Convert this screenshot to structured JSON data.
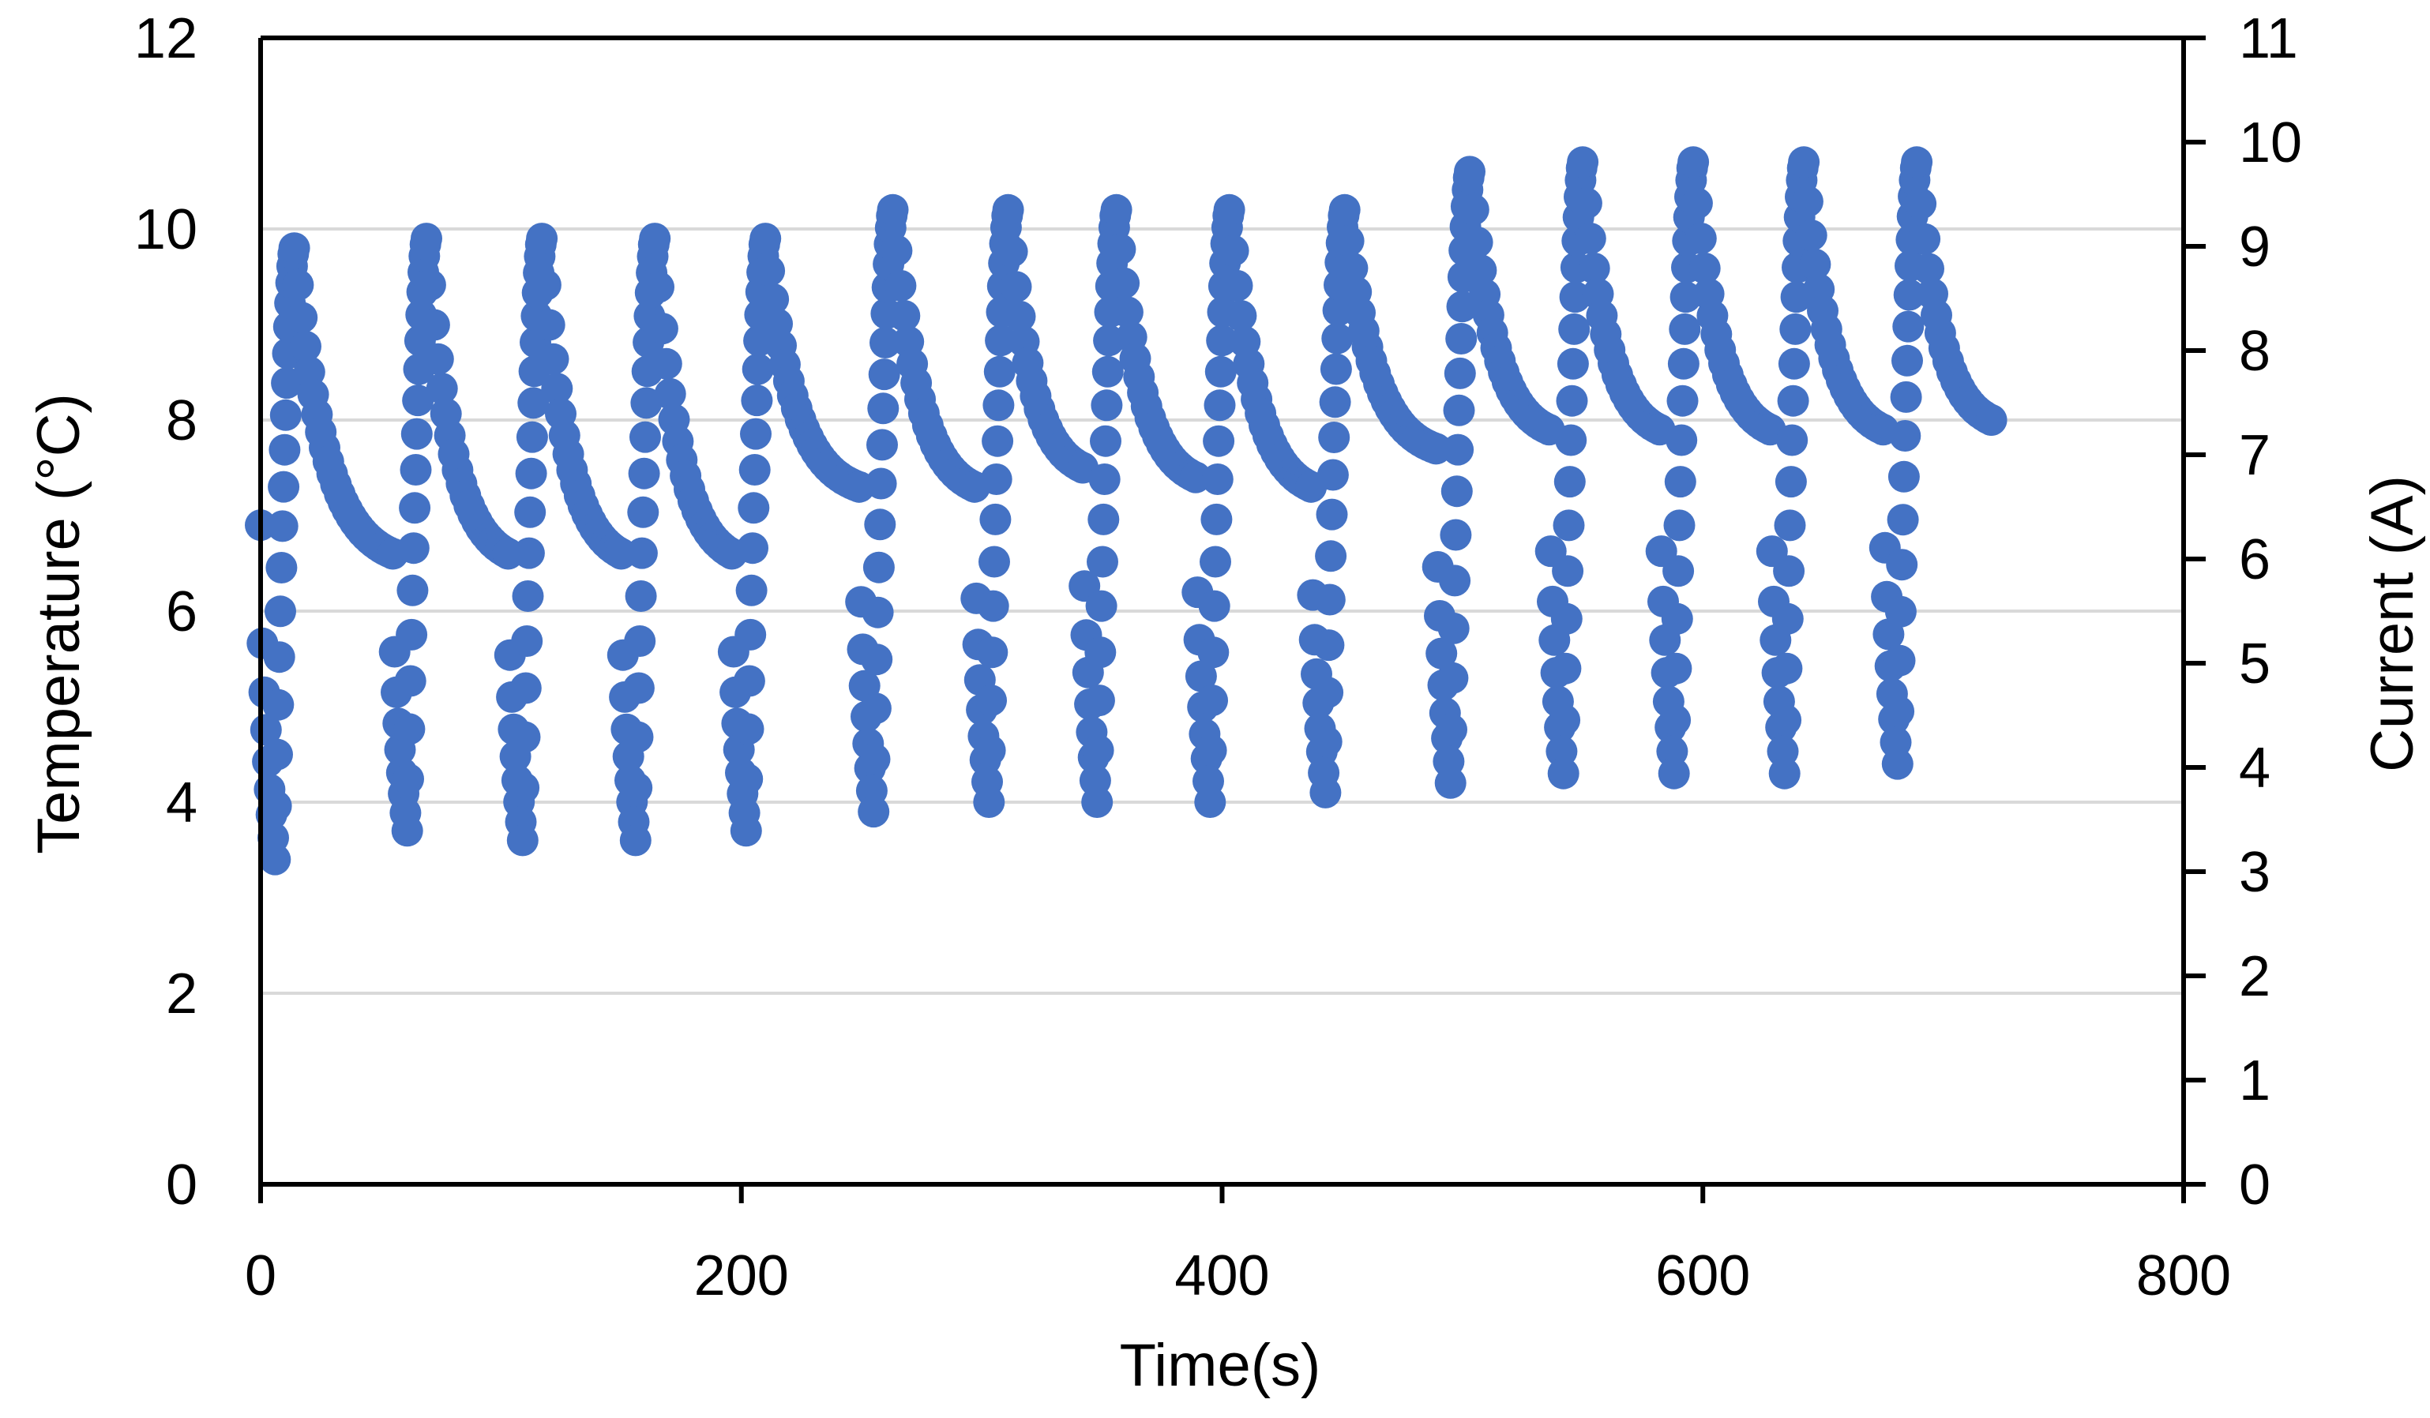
{
  "chart_data": {
    "type": "scatter",
    "title": "",
    "xlabel": "Time(s)",
    "ylabel": "Temperature (°C)",
    "y2label": "Current (A)",
    "xlim": [
      0,
      800
    ],
    "ylim": [
      0,
      12
    ],
    "y2lim": [
      0,
      11
    ],
    "x_ticks": [
      "0",
      "200",
      "400",
      "600",
      "800"
    ],
    "y_ticks": [
      "0",
      "2",
      "4",
      "6",
      "8",
      "10",
      "12"
    ],
    "y2_ticks": [
      "0",
      "1",
      "2",
      "3",
      "4",
      "5",
      "6",
      "7",
      "8",
      "9",
      "10",
      "11"
    ],
    "grid": true,
    "legend": "none",
    "series_color": "#4472C4",
    "series": [
      {
        "axis": "left",
        "note_on_values": "[time_s, temperature_C] estimated from axes",
        "cycles": [
          {
            "start": 0,
            "low": 3.4,
            "peak": 9.8,
            "end": 6.6
          },
          {
            "start": 55,
            "low": 3.7,
            "peak": 9.9,
            "end": 6.6
          },
          {
            "start": 103,
            "low": 3.6,
            "peak": 9.9,
            "end": 6.6
          },
          {
            "start": 150,
            "low": 3.6,
            "peak": 9.9,
            "end": 6.6
          },
          {
            "start": 196,
            "low": 3.7,
            "peak": 9.9,
            "end": 7.3
          },
          {
            "start": 249,
            "low": 3.9,
            "peak": 10.2,
            "end": 7.3
          },
          {
            "start": 297,
            "low": 4.0,
            "peak": 10.2,
            "end": 7.5
          },
          {
            "start": 342,
            "low": 4.0,
            "peak": 10.2,
            "end": 7.4
          },
          {
            "start": 389,
            "low": 4.0,
            "peak": 10.2,
            "end": 7.3
          },
          {
            "start": 437,
            "low": 4.1,
            "peak": 10.2,
            "end": 7.7
          },
          {
            "start": 489,
            "low": 4.2,
            "peak": 10.6,
            "end": 7.9
          },
          {
            "start": 536,
            "low": 4.3,
            "peak": 10.7,
            "end": 7.9
          },
          {
            "start": 582,
            "low": 4.3,
            "peak": 10.7,
            "end": 7.9
          },
          {
            "start": 628,
            "low": 4.3,
            "peak": 10.7,
            "end": 7.9
          },
          {
            "start": 675,
            "low": 4.4,
            "peak": 10.7,
            "end": 8.0
          }
        ],
        "last_point": [
          720,
          8.0
        ]
      }
    ]
  }
}
